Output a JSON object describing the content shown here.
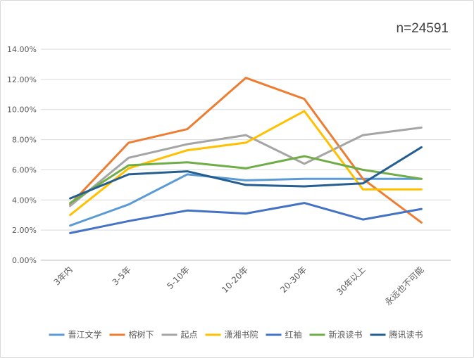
{
  "chart_data": {
    "type": "line",
    "annotation": "n=24591",
    "categories": [
      "3年内",
      "3-5年",
      "5-10年",
      "10-20年",
      "20-30年",
      "30年以上",
      "永远也不可能"
    ],
    "ylim": [
      0,
      14
    ],
    "yticks": [
      "0.00%",
      "2.00%",
      "4.00%",
      "6.00%",
      "8.00%",
      "10.00%",
      "12.00%",
      "14.00%"
    ],
    "grid": true,
    "legend_position": "bottom",
    "series": [
      {
        "name": "晋江文学",
        "color": "#5b9bd5",
        "values": [
          2.3,
          3.7,
          5.7,
          5.3,
          5.4,
          5.4,
          5.4
        ]
      },
      {
        "name": "榕树下",
        "color": "#ed7d31",
        "values": [
          3.7,
          7.8,
          8.7,
          12.1,
          10.7,
          5.4,
          2.5
        ]
      },
      {
        "name": "起点",
        "color": "#a5a5a5",
        "values": [
          3.6,
          6.8,
          7.7,
          8.3,
          6.4,
          8.3,
          8.8
        ]
      },
      {
        "name": "潇湘书院",
        "color": "#ffc000",
        "values": [
          3.0,
          6.1,
          7.3,
          7.8,
          9.9,
          4.7,
          4.7
        ]
      },
      {
        "name": "红袖",
        "color": "#4472c4",
        "values": [
          1.8,
          2.6,
          3.3,
          3.1,
          3.8,
          2.7,
          3.4
        ]
      },
      {
        "name": "新浪读书",
        "color": "#70ad47",
        "values": [
          3.8,
          6.3,
          6.5,
          6.1,
          6.9,
          6.0,
          5.4
        ]
      },
      {
        "name": "腾讯读书",
        "color": "#255e91",
        "values": [
          4.1,
          5.7,
          5.9,
          5.0,
          4.9,
          5.1,
          7.5
        ]
      }
    ]
  }
}
